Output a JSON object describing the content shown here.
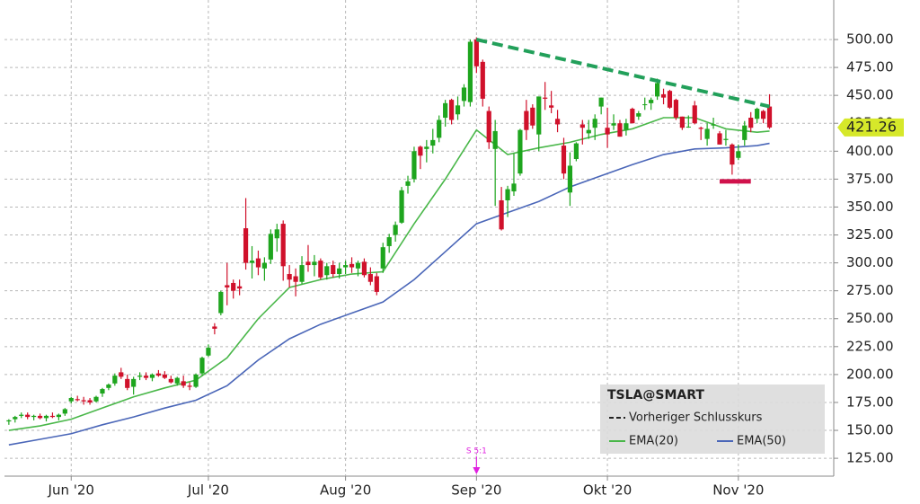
{
  "chart_data": {
    "type": "candlestick",
    "title": "TSLA@SMART",
    "up_color": "#1ea51e",
    "down_color": "#d0112b",
    "candles": [
      [
        158,
        160,
        155,
        159
      ],
      [
        160,
        163,
        157,
        162
      ],
      [
        163,
        166,
        161,
        164
      ],
      [
        164,
        166,
        160,
        162
      ],
      [
        162,
        164,
        159,
        163
      ],
      [
        163,
        165,
        160,
        161
      ],
      [
        161,
        164,
        158,
        163
      ],
      [
        163,
        166,
        161,
        162
      ],
      [
        162,
        165,
        159,
        164
      ],
      [
        165,
        170,
        163,
        169
      ],
      [
        176,
        180,
        174,
        179
      ],
      [
        178,
        181,
        176,
        177
      ],
      [
        177,
        180,
        173,
        176
      ],
      [
        177,
        179,
        173,
        175
      ],
      [
        176,
        181,
        175,
        180
      ],
      [
        183,
        188,
        180,
        187
      ],
      [
        188,
        192,
        186,
        191
      ],
      [
        192,
        201,
        190,
        199
      ],
      [
        202,
        206,
        196,
        198
      ],
      [
        196,
        200,
        186,
        188
      ],
      [
        189,
        198,
        182,
        196
      ],
      [
        198,
        202,
        195,
        199
      ],
      [
        199,
        202,
        195,
        197
      ],
      [
        197,
        201,
        194,
        200
      ],
      [
        201,
        204,
        198,
        199
      ],
      [
        200,
        203,
        196,
        197
      ],
      [
        196,
        199,
        192,
        193
      ],
      [
        192,
        198,
        190,
        197
      ],
      [
        194,
        199,
        188,
        190
      ],
      [
        190,
        193,
        186,
        189
      ],
      [
        189,
        201,
        188,
        200
      ],
      [
        201,
        216,
        199,
        215
      ],
      [
        217,
        227,
        216,
        224
      ],
      [
        243,
        246,
        236,
        241
      ],
      [
        255,
        275,
        253,
        274
      ],
      [
        280,
        300,
        262,
        278
      ],
      [
        282,
        285,
        268,
        275
      ],
      [
        279,
        285,
        271,
        277
      ],
      [
        331,
        358,
        294,
        300
      ],
      [
        300,
        315,
        286,
        302
      ],
      [
        304,
        311,
        289,
        296
      ],
      [
        295,
        305,
        284,
        300
      ],
      [
        303,
        330,
        299,
        326
      ],
      [
        322,
        335,
        310,
        330
      ],
      [
        335,
        338,
        284,
        297
      ],
      [
        290,
        298,
        278,
        285
      ],
      [
        288,
        295,
        270,
        283
      ],
      [
        283,
        306,
        281,
        298
      ],
      [
        301,
        316,
        292,
        298
      ],
      [
        298,
        307,
        288,
        301
      ],
      [
        302,
        304,
        285,
        287
      ],
      [
        289,
        300,
        285,
        297
      ],
      [
        298,
        302,
        287,
        290
      ],
      [
        290,
        300,
        286,
        295
      ],
      [
        296,
        302,
        290,
        298
      ],
      [
        299,
        305,
        291,
        296
      ],
      [
        295,
        302,
        288,
        300
      ],
      [
        301,
        304,
        287,
        289
      ],
      [
        290,
        296,
        280,
        283
      ],
      [
        288,
        291,
        271,
        274
      ],
      [
        295,
        318,
        291,
        314
      ],
      [
        315,
        326,
        309,
        323
      ],
      [
        325,
        337,
        319,
        334
      ],
      [
        336,
        368,
        335,
        365
      ],
      [
        369,
        378,
        362,
        373
      ],
      [
        375,
        404,
        372,
        400
      ],
      [
        404,
        405,
        384,
        396
      ],
      [
        402,
        410,
        390,
        404
      ],
      [
        405,
        420,
        398,
        410
      ],
      [
        412,
        432,
        408,
        428
      ],
      [
        430,
        446,
        422,
        443
      ],
      [
        446,
        447,
        424,
        428
      ],
      [
        433,
        449,
        428,
        441
      ],
      [
        445,
        460,
        440,
        457
      ],
      [
        444,
        500,
        440,
        498
      ],
      [
        500,
        502,
        470,
        476
      ],
      [
        480,
        482,
        440,
        447
      ],
      [
        436,
        440,
        402,
        408
      ],
      [
        402,
        428,
        351,
        418
      ],
      [
        356,
        368,
        329,
        330
      ],
      [
        356,
        369,
        341,
        366
      ],
      [
        364,
        398,
        360,
        371
      ],
      [
        380,
        420,
        378,
        419
      ],
      [
        436,
        446,
        410,
        419
      ],
      [
        439,
        442,
        420,
        423
      ],
      [
        415,
        449,
        400,
        449
      ],
      [
        448,
        462,
        437,
        447
      ],
      [
        441,
        454,
        434,
        439
      ],
      [
        429,
        437,
        417,
        424
      ],
      [
        405,
        412,
        375,
        380
      ],
      [
        363,
        399,
        351,
        387
      ],
      [
        393,
        408,
        391,
        407
      ],
      [
        424,
        428,
        406,
        421
      ],
      [
        416,
        428,
        411,
        419
      ],
      [
        421,
        433,
        410,
        429
      ],
      [
        440,
        448,
        433,
        448
      ],
      [
        421,
        439,
        403,
        415
      ],
      [
        423,
        433,
        419,
        425
      ],
      [
        425,
        428,
        413,
        413
      ],
      [
        419,
        429,
        414,
        425
      ],
      [
        438,
        439,
        425,
        425
      ],
      [
        431,
        436,
        428,
        434
      ],
      [
        442,
        448,
        437,
        442
      ],
      [
        443,
        448,
        437,
        446
      ],
      [
        449,
        465,
        446,
        461
      ],
      [
        451,
        456,
        442,
        448
      ],
      [
        454,
        455,
        438,
        439
      ],
      [
        446,
        447,
        428,
        430
      ],
      [
        431,
        431,
        419,
        421
      ],
      [
        422,
        432,
        421,
        422
      ],
      [
        441,
        445,
        424,
        425
      ],
      [
        421,
        422,
        410,
        420
      ],
      [
        411,
        425,
        405,
        420
      ],
      [
        423,
        430,
        420,
        424
      ],
      [
        416,
        418,
        406,
        406
      ],
      [
        410,
        419,
        405,
        411
      ],
      [
        406,
        407,
        379,
        388
      ],
      [
        394,
        406,
        392,
        400
      ],
      [
        410,
        427,
        405,
        423
      ],
      [
        430,
        435,
        417,
        421
      ],
      [
        429,
        439,
        425,
        438
      ],
      [
        436,
        437,
        425,
        429
      ],
      [
        440,
        451,
        420,
        421.26
      ]
    ],
    "series": [
      {
        "name": "Vorheriger Schlusskurs",
        "color": "#222222"
      },
      {
        "name": "EMA(20)",
        "color": "#49b749",
        "x": [
          0,
          5,
          10,
          15,
          20,
          25,
          30,
          35,
          40,
          45,
          50,
          55,
          60,
          65,
          70,
          75,
          80,
          85,
          90,
          95,
          100,
          105,
          110,
          115,
          120,
          122
        ],
        "values": [
          150,
          154,
          160,
          170,
          180,
          188,
          195,
          215,
          250,
          278,
          285,
          290,
          292,
          335,
          375,
          419,
          397,
          403,
          408,
          415,
          420,
          430,
          430,
          420,
          417,
          418
        ]
      },
      {
        "name": "EMA(50)",
        "color": "#4a66b8",
        "x": [
          0,
          5,
          10,
          15,
          20,
          25,
          30,
          35,
          40,
          45,
          50,
          55,
          60,
          65,
          70,
          75,
          80,
          85,
          90,
          95,
          100,
          105,
          110,
          115,
          120,
          122
        ],
        "values": [
          137,
          142,
          147,
          155,
          162,
          170,
          177,
          190,
          213,
          232,
          245,
          255,
          265,
          285,
          310,
          335,
          345,
          355,
          368,
          378,
          388,
          397,
          402,
          403,
          405,
          407
        ]
      }
    ],
    "last_price": 421.26,
    "trendline": {
      "color": "#22a05a",
      "x": [
        75,
        122
      ],
      "y": [
        500,
        440
      ]
    },
    "support": {
      "color": "#d0114b",
      "x": [
        114,
        119
      ],
      "y": 373
    },
    "annotation": {
      "x": 75,
      "label": "S 5:1"
    },
    "xlim": [
      -0.7,
      132.3
    ],
    "xticks": [
      {
        "value": 10,
        "label": "Jun '20"
      },
      {
        "value": 32,
        "label": "Jul '20"
      },
      {
        "value": 54,
        "label": "Aug '20"
      },
      {
        "value": 75,
        "label": "Sep '20"
      },
      {
        "value": 96,
        "label": "Okt '20"
      },
      {
        "value": 117,
        "label": "Nov '20"
      }
    ],
    "ylim": [
      109,
      535.4
    ],
    "yticks": [
      {
        "value": 125,
        "label": "125.00"
      },
      {
        "value": 150,
        "label": "150.00"
      },
      {
        "value": 175,
        "label": "175.00"
      },
      {
        "value": 200,
        "label": "200.00"
      },
      {
        "value": 225,
        "label": "225.00"
      },
      {
        "value": 250,
        "label": "250.00"
      },
      {
        "value": 275,
        "label": "275.00"
      },
      {
        "value": 300,
        "label": "300.00"
      },
      {
        "value": 325,
        "label": "325.00"
      },
      {
        "value": 350,
        "label": "350.00"
      },
      {
        "value": 375,
        "label": "375.00"
      },
      {
        "value": 400,
        "label": "400.00"
      },
      {
        "value": 425,
        "label": "425.00"
      },
      {
        "value": 450,
        "label": "450.00"
      },
      {
        "value": 475,
        "label": "475.00"
      },
      {
        "value": 500,
        "label": "500.00"
      }
    ],
    "grid": true
  }
}
